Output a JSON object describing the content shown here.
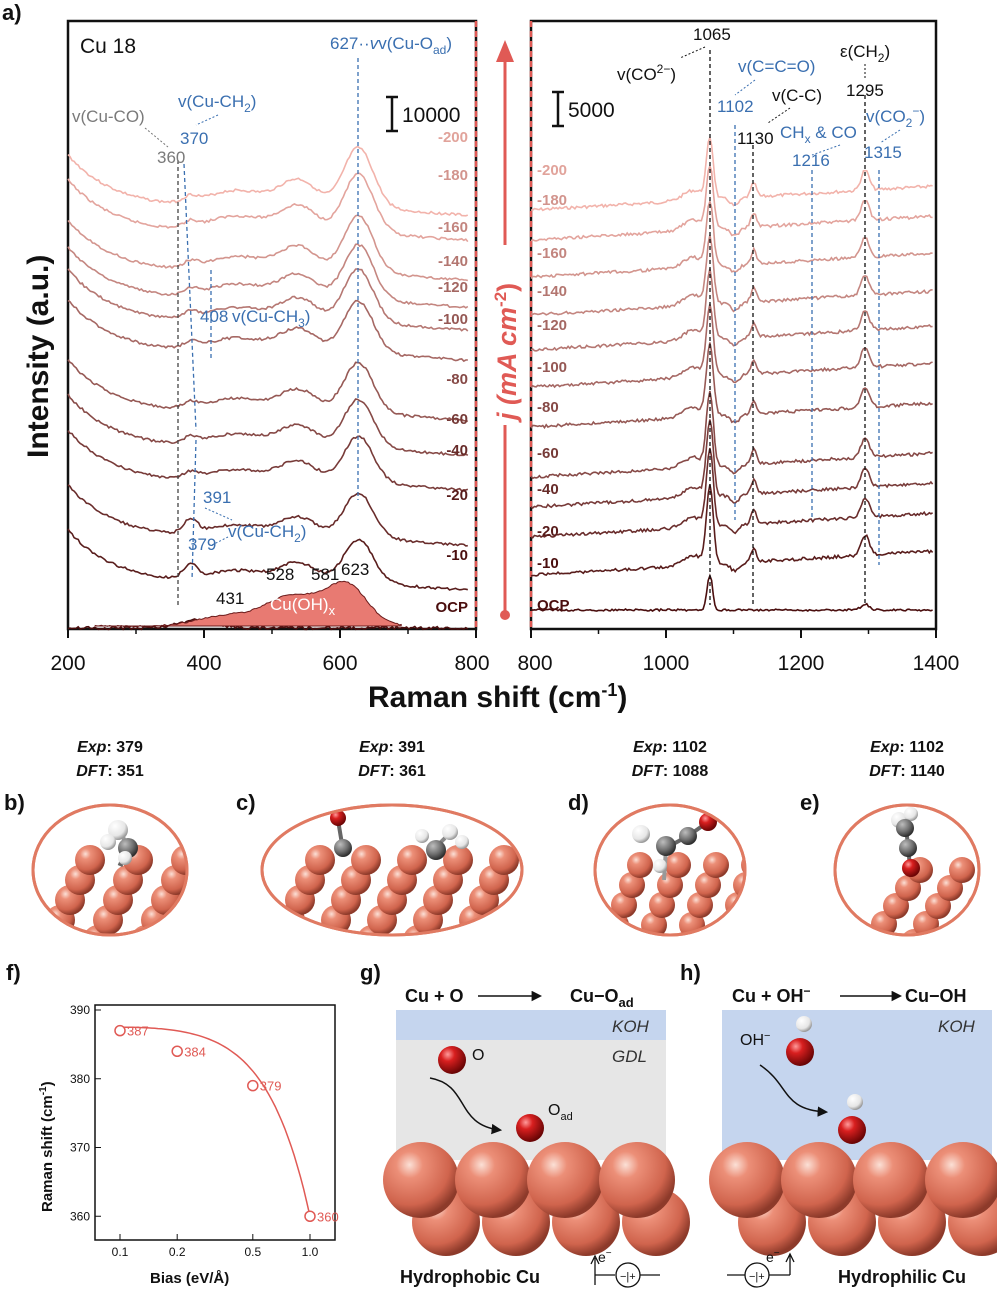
{
  "panel_a": {
    "letter": "a)",
    "sample_label": "Cu 18",
    "ylabel": "Intensity (a.u.)",
    "xlabel": "Raman shift (cm",
    "xlabel_sup": "-1",
    "xlabel_close": ")",
    "middle_axis": "j (mA cm",
    "middle_axis_sup": "-2",
    "middle_axis_close": ")",
    "scale_left": "10000",
    "scale_right": "5000",
    "cuoh_label": "Cu(OH)",
    "cuoh_sub": "x",
    "left_ticks": [
      "200",
      "400",
      "600",
      "800"
    ],
    "right_ticks": [
      "800",
      "1000",
      "1200",
      "1400"
    ],
    "bias_labels": [
      "-200",
      "-180",
      "-160",
      "-140",
      "-120",
      "-100",
      "-80",
      "-60",
      "-40",
      "-20",
      "-10",
      "OCP"
    ],
    "annotations": {
      "cu_oad": "627",
      "cu_oad_label": "v(Cu-O",
      "cu_oad_sub": "ad",
      "cu_co": "v(Cu-CO)",
      "cu_co_peak": "360",
      "cu_ch2_top": "v(Cu-CH",
      "cu_ch2_top_sub": "2",
      "cu_ch2_top_peak": "370",
      "cu_ch3_peak": "408",
      "cu_ch3": "v(Cu-CH",
      "cu_ch3_sub": "3",
      "peak_391": "391",
      "peak_379": "379",
      "cu_ch2_bottom": "v(Cu-CH",
      "cu_ch2_bottom_sub": "2",
      "peak_431": "431",
      "peak_528": "528",
      "peak_581": "581",
      "peak_623": "623",
      "co3_peak": "1065",
      "co3": "v(CO",
      "co3_sup": "2−",
      "cco": "v(C=C=O)",
      "cco_peak": "1102",
      "cc": "v(C-C)",
      "cc_peak": "1130",
      "chx": "CH",
      "chx_sub": "x",
      "chx_rest": " & CO",
      "chx_peak": "1216",
      "ch2_eps": "ε(CH",
      "ch2_eps_sub": "2",
      "ch2_eps_peak": "1295",
      "co2": "v(CO",
      "co2_sup": "2",
      "co2_peak": "1315"
    }
  },
  "structures": [
    {
      "letter": "b)",
      "exp_label": "Exp",
      "exp": "379",
      "dft_label": "DFT",
      "dft": "351"
    },
    {
      "letter": "c)",
      "exp_label": "Exp",
      "exp": "391",
      "dft_label": "DFT",
      "dft": "361"
    },
    {
      "letter": "d)",
      "exp_label": "Exp",
      "exp": "1102",
      "dft_label": "DFT",
      "dft": "1088"
    },
    {
      "letter": "e)",
      "exp_label": "Exp",
      "exp": "1102",
      "dft_label": "DFT",
      "dft": "1140"
    }
  ],
  "panel_g": {
    "letter": "g)",
    "eq_left": "Cu + O",
    "eq_right": "Cu−O",
    "eq_right_sub": "ad",
    "electrolyte": "KOH",
    "gdl": "GDL",
    "species": "O",
    "adsorbate": "O",
    "adsorbate_sub": "ad",
    "caption": "Hydrophobic Cu",
    "electron": "e"
  },
  "panel_h": {
    "letter": "h)",
    "eq_left": "Cu + OH",
    "eq_left_sup": "−",
    "eq_right": "Cu−OH",
    "electrolyte": "KOH",
    "species": "OH",
    "species_sup": "−",
    "caption": "Hydrophilic Cu",
    "electron": "e"
  },
  "colors": {
    "spectra_light": "#f2b3ab",
    "spectra_dark": "#4a0e0e",
    "annotation_blue": "#3a6fb0",
    "guide_red": "#e05a55",
    "copper": "#e07a62",
    "cuoh_fill": "#e87a72",
    "kOH_blue": "#c5d5ee"
  },
  "chart_data": [
    {
      "type": "line",
      "panel": "a-left",
      "xlabel": "Raman shift (cm-1)",
      "ylabel": "Intensity (a.u.)",
      "xlim": [
        200,
        800
      ],
      "series_labels": [
        "-200",
        "-180",
        "-160",
        "-140",
        "-120",
        "-100",
        "-80",
        "-60",
        "-40",
        "-20",
        "-10",
        "OCP"
      ],
      "peaks": [
        360,
        370,
        379,
        391,
        408,
        431,
        528,
        581,
        623,
        627
      ],
      "scale_bar": 10000
    },
    {
      "type": "line",
      "panel": "a-right",
      "xlim": [
        800,
        1400
      ],
      "series_labels": [
        "-200",
        "-180",
        "-160",
        "-140",
        "-120",
        "-100",
        "-80",
        "-60",
        "-40",
        "-20",
        "-10",
        "OCP"
      ],
      "peaks": [
        1065,
        1102,
        1130,
        1216,
        1295,
        1315
      ],
      "scale_bar": 5000
    },
    {
      "type": "line",
      "panel": "f",
      "xlabel": "Bias (eV/Å)",
      "ylabel": "Raman shift (cm-1)",
      "x": [
        0.1,
        0.2,
        0.5,
        1.0
      ],
      "y": [
        387,
        384,
        379,
        360
      ],
      "point_labels": [
        "387",
        "384",
        "379",
        "360"
      ],
      "x_ticks": [
        "0.1",
        "0.2",
        "0.5",
        "1.0"
      ],
      "y_ticks": [
        "360",
        "370",
        "380",
        "390"
      ],
      "ylim": [
        358,
        390
      ],
      "xscale": "log"
    }
  ],
  "panel_f": {
    "letter": "f)",
    "xlabel": "Bias (eV/Å)",
    "ylabel": "Raman shift (cm",
    "ylabel_sup": "-1",
    "ylabel_close": ")"
  }
}
